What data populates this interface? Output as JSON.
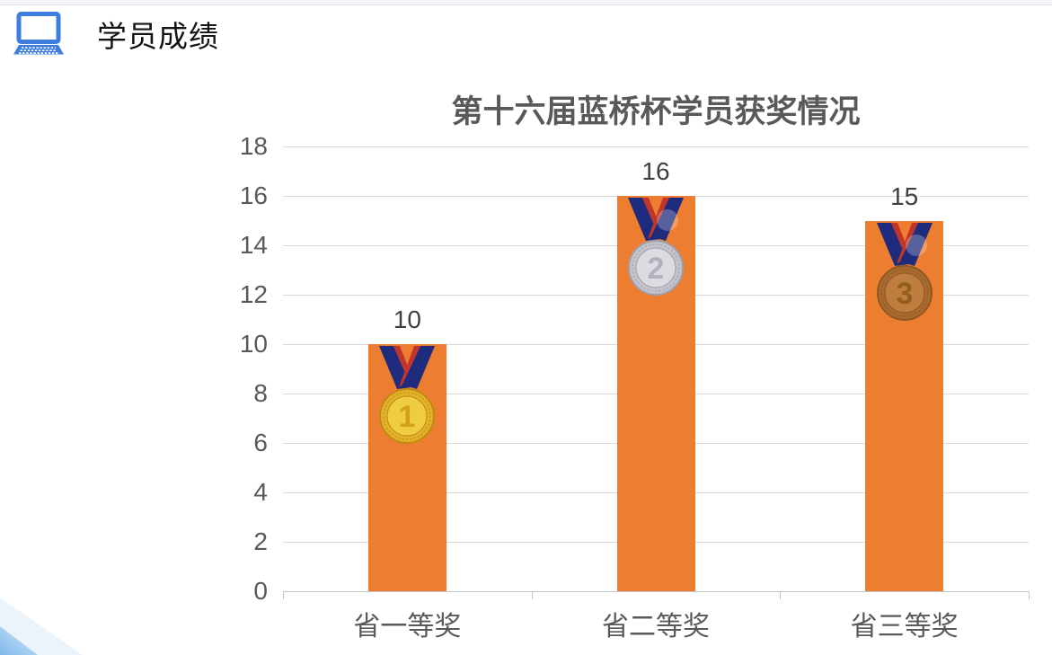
{
  "page": {
    "top_band_color": "#f3f5fb",
    "background_color": "#ffffff"
  },
  "header": {
    "title": "学员成绩",
    "icon": "laptop-icon",
    "icon_color": "#3e7ede"
  },
  "chart_data": {
    "type": "bar",
    "title": "第十六届蓝桥杯学员获奖情况",
    "categories": [
      "省一等奖",
      "省二等奖",
      "省三等奖"
    ],
    "values": [
      10,
      16,
      15
    ],
    "data_labels": [
      "10",
      "16",
      "15"
    ],
    "xlabel": "",
    "ylabel": "",
    "ylim": [
      0,
      18
    ],
    "ytick_step": 2,
    "ytick_labels": [
      "0",
      "2",
      "4",
      "6",
      "8",
      "10",
      "12",
      "14",
      "16",
      "18"
    ],
    "grid": true,
    "legend_position": "none",
    "bar_color": "#ed7d31",
    "title_color": "#595959",
    "axis_label_color": "#595959",
    "value_label_color": "#3f3f3f",
    "gridline_color": "#d9d9d9",
    "axis_line_color": "#c3c3c3",
    "medals": [
      {
        "name": "gold-medal-icon",
        "rank": "1",
        "outer": "#e2b22b",
        "inner": "#efce43",
        "rim": "#c08a12",
        "number_color": "#d2a115",
        "highlight": false
      },
      {
        "name": "silver-medal-icon",
        "rank": "2",
        "outer": "#c2c3cb",
        "inner": "#dcdde2",
        "rim": "#9fa0aa",
        "number_color": "#b0b1bd",
        "highlight": true
      },
      {
        "name": "bronze-medal-icon",
        "rank": "3",
        "outer": "#a86a2e",
        "inner": "#c07f40",
        "rim": "#8f5724",
        "number_color": "#925d1f",
        "highlight": true
      }
    ],
    "ribbon_colors": {
      "navy": "#1f2c7e",
      "red": "#c1352a"
    }
  },
  "decoration": {
    "name": "corner-ribbon",
    "stripe_color": "#7eb9ea",
    "stripe_fade_color": "#d6eaf9",
    "back_triangle_color": "#ecf4fb"
  }
}
